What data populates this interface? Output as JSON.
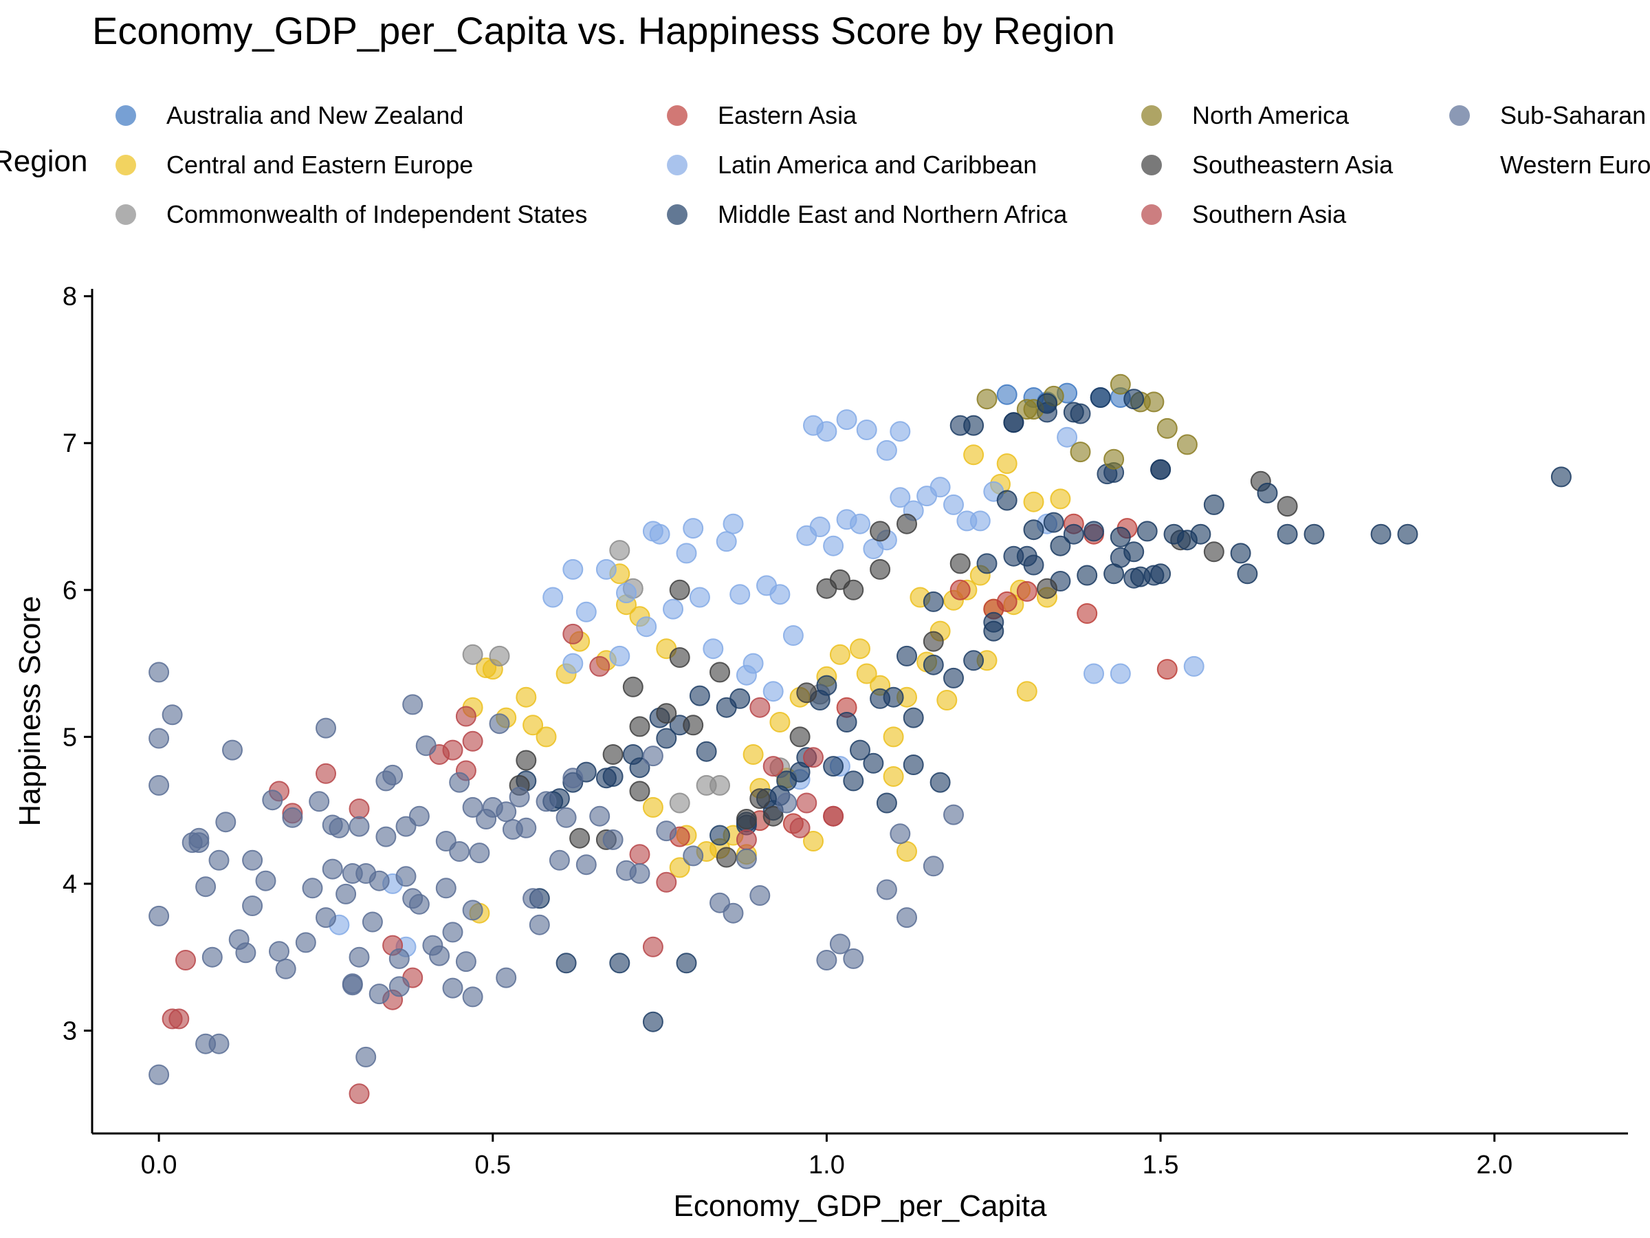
{
  "chart_data": {
    "type": "scatter",
    "title": "Economy_GDP_per_Capita vs. Happiness Score by Region",
    "xlabel": "Economy_GDP_per_Capita",
    "ylabel": "Happiness Score",
    "xlim": [
      -0.1,
      2.2
    ],
    "ylim": [
      2.3,
      8.05
    ],
    "xticks": [
      0.0,
      0.5,
      1.0,
      1.5,
      2.0
    ],
    "xtick_labels": [
      "0.0",
      "0.5",
      "1.0",
      "1.5",
      "2.0"
    ],
    "yticks": [
      3,
      4,
      5,
      6,
      7,
      8
    ],
    "ytick_labels": [
      "3",
      "4",
      "5",
      "6",
      "7",
      "8"
    ],
    "grid": false,
    "legend": {
      "title": "Region",
      "placement": "top",
      "columns": [
        [
          "Australia and New Zealand",
          "Central and Eastern Europe",
          "Commonwealth of Independent States"
        ],
        [
          "Eastern Asia",
          "Latin America and Caribbean",
          "Middle East and Northern Africa"
        ],
        [
          "North America",
          "Southeastern Asia",
          "Southern Asia"
        ],
        [
          "Sub-Saharan Africa",
          "Western Europe"
        ]
      ]
    },
    "series": [
      {
        "name": "Australia and New Zealand",
        "color": "#3d78c2",
        "x": [
          1.27,
          1.31,
          1.36,
          1.41,
          1.44,
          1.33
        ],
        "y": [
          7.33,
          7.31,
          7.34,
          7.31,
          7.31,
          7.28
        ]
      },
      {
        "name": "Central and Eastern Europe",
        "color": "#ecc01d",
        "x": [
          0.47,
          0.49,
          0.52,
          0.55,
          0.58,
          0.63,
          0.67,
          0.7,
          0.72,
          0.76,
          0.79,
          0.82,
          0.86,
          0.89,
          0.9,
          0.93,
          0.96,
          1.0,
          1.02,
          1.05,
          1.08,
          1.1,
          1.12,
          1.15,
          1.17,
          1.19,
          1.21,
          1.23,
          1.25,
          1.27,
          1.29,
          1.31,
          1.33,
          1.35,
          1.22,
          1.18,
          1.14,
          1.06,
          0.98,
          0.94,
          0.88,
          0.84,
          0.78,
          0.74,
          0.69,
          0.61,
          0.56,
          0.5,
          0.48,
          1.12,
          1.1,
          1.24,
          1.26,
          1.3,
          1.28
        ],
        "y": [
          5.2,
          5.47,
          5.13,
          5.27,
          5.0,
          5.65,
          5.52,
          5.9,
          5.82,
          5.6,
          4.33,
          4.22,
          4.33,
          4.88,
          4.65,
          5.1,
          5.27,
          5.41,
          5.56,
          5.6,
          5.35,
          5.0,
          5.27,
          5.51,
          5.72,
          5.93,
          6.0,
          6.1,
          5.87,
          6.86,
          6.0,
          6.6,
          5.95,
          6.62,
          6.92,
          5.25,
          5.95,
          5.43,
          4.29,
          4.72,
          4.2,
          4.24,
          4.11,
          4.52,
          6.11,
          5.43,
          5.08,
          5.46,
          3.8,
          4.22,
          4.73,
          5.52,
          6.72,
          5.31,
          5.9
        ]
      },
      {
        "name": "Commonwealth of Independent States",
        "color": "#8c8c8c",
        "x": [
          0.47,
          0.51,
          0.69,
          0.71,
          0.78,
          0.84,
          0.82,
          0.93,
          0.99
        ],
        "y": [
          5.56,
          5.55,
          6.27,
          6.01,
          4.55,
          4.67,
          4.67,
          4.79,
          5.29
        ]
      },
      {
        "name": "Eastern Asia",
        "color": "#bd3f3a",
        "x": [
          1.2,
          1.25,
          1.27,
          1.3,
          1.37,
          1.4,
          1.45,
          1.39,
          1.51,
          0.78,
          0.9,
          0.95,
          1.03
        ],
        "y": [
          6.0,
          5.87,
          5.92,
          5.99,
          6.45,
          6.38,
          6.42,
          5.84,
          5.46,
          4.32,
          4.43,
          4.41,
          5.2
        ]
      },
      {
        "name": "Latin America and Caribbean",
        "color": "#84aae6",
        "x": [
          0.59,
          0.62,
          0.64,
          0.67,
          0.7,
          0.73,
          0.75,
          0.77,
          0.79,
          0.81,
          0.83,
          0.85,
          0.87,
          0.89,
          0.91,
          0.93,
          0.95,
          0.97,
          0.99,
          1.01,
          1.03,
          1.05,
          1.07,
          1.09,
          1.11,
          1.13,
          1.15,
          1.17,
          1.19,
          1.21,
          1.23,
          1.25,
          1.33,
          1.36,
          1.4,
          1.44,
          1.55,
          0.98,
          1.0,
          1.03,
          1.06,
          1.09,
          1.11,
          0.74,
          0.8,
          0.86,
          0.88,
          0.92,
          0.96,
          1.02,
          0.62,
          0.69,
          0.35,
          0.37,
          0.27
        ],
        "y": [
          5.95,
          6.14,
          5.85,
          6.14,
          5.98,
          5.75,
          6.38,
          5.87,
          6.25,
          5.95,
          5.6,
          6.33,
          5.97,
          5.5,
          6.03,
          5.97,
          5.69,
          6.37,
          6.43,
          6.3,
          6.48,
          6.45,
          6.28,
          6.34,
          6.63,
          6.54,
          6.64,
          6.7,
          6.58,
          6.47,
          6.47,
          6.67,
          6.45,
          7.04,
          5.43,
          5.43,
          5.48,
          7.12,
          7.08,
          7.16,
          7.09,
          6.95,
          7.08,
          6.4,
          6.42,
          6.45,
          5.42,
          5.31,
          4.71,
          4.8,
          5.5,
          5.55,
          4.0,
          3.57,
          3.72
        ]
      },
      {
        "name": "Middle East and Northern Africa",
        "color": "#1f3e66",
        "x": [
          0.55,
          0.6,
          0.64,
          0.67,
          0.71,
          0.75,
          0.78,
          0.82,
          0.85,
          0.88,
          0.91,
          0.94,
          0.97,
          1.0,
          1.04,
          1.07,
          1.1,
          1.13,
          1.16,
          1.19,
          1.22,
          1.25,
          1.28,
          1.31,
          1.34,
          1.37,
          1.4,
          1.43,
          1.46,
          1.49,
          1.5,
          1.2,
          1.28,
          1.33,
          1.38,
          1.42,
          1.44,
          0.57,
          0.61,
          0.69,
          0.74,
          0.79,
          0.84,
          0.88,
          0.92,
          0.96,
          1.01,
          1.05,
          1.09,
          1.13,
          1.17,
          0.59,
          0.62,
          0.68,
          0.72,
          0.76,
          0.81,
          0.87,
          0.93,
          0.99,
          1.03,
          1.08,
          1.12,
          1.16,
          1.24,
          1.3,
          1.35
        ],
        "y": [
          4.7,
          4.58,
          4.76,
          4.72,
          4.88,
          5.13,
          5.08,
          4.9,
          5.2,
          4.4,
          4.58,
          4.7,
          4.86,
          5.35,
          4.7,
          4.82,
          5.27,
          5.13,
          5.49,
          5.4,
          5.52,
          5.78,
          6.23,
          6.17,
          6.46,
          6.38,
          6.4,
          6.8,
          6.08,
          6.1,
          6.82,
          7.12,
          7.14,
          7.21,
          7.2,
          6.79,
          6.22,
          3.9,
          3.46,
          3.46,
          3.06,
          3.46,
          4.33,
          4.42,
          4.5,
          4.76,
          4.8,
          4.91,
          4.55,
          4.81,
          4.69,
          4.56,
          4.69,
          4.73,
          4.79,
          4.99,
          5.28,
          5.26,
          4.6,
          5.25,
          5.1,
          5.26,
          5.55,
          5.92,
          6.18,
          6.23,
          6.06
        ]
      },
      {
        "name": "North America",
        "color": "#8b7d23",
        "x": [
          1.24,
          1.3,
          1.34,
          1.38,
          1.43,
          1.44,
          1.47,
          1.49,
          1.51,
          1.54,
          1.31
        ],
        "y": [
          7.3,
          7.23,
          7.32,
          6.94,
          6.89,
          7.4,
          7.28,
          7.28,
          7.1,
          6.99,
          7.23
        ]
      },
      {
        "name": "Southeastern Asia",
        "color": "#404040",
        "x": [
          0.55,
          0.63,
          0.68,
          0.72,
          0.76,
          0.8,
          0.84,
          0.88,
          0.92,
          0.96,
          1.0,
          1.04,
          1.08,
          1.12,
          1.16,
          1.2,
          1.33,
          1.53,
          1.58,
          1.65,
          1.69,
          0.67,
          0.71,
          0.78,
          0.85,
          0.9,
          0.97,
          1.02,
          1.08,
          0.54,
          0.72,
          0.78
        ],
        "y": [
          4.84,
          4.31,
          4.88,
          5.07,
          5.16,
          5.08,
          5.44,
          4.44,
          4.46,
          5.0,
          6.01,
          6.0,
          6.4,
          6.45,
          5.65,
          6.18,
          6.01,
          6.34,
          6.26,
          6.74,
          6.57,
          4.3,
          5.34,
          5.54,
          4.18,
          4.58,
          5.3,
          6.07,
          6.14,
          4.67,
          4.63,
          6.0
        ]
      },
      {
        "name": "Southern Asia",
        "color": "#b7474a",
        "x": [
          0.18,
          0.2,
          0.25,
          0.3,
          0.35,
          0.38,
          0.42,
          0.44,
          0.46,
          0.47,
          0.62,
          0.66,
          0.72,
          0.74,
          0.76,
          0.9,
          0.96,
          0.98,
          1.01,
          0.04,
          0.02,
          0.03,
          0.3,
          0.35,
          0.46,
          0.88,
          0.92,
          0.97,
          1.01
        ],
        "y": [
          4.63,
          4.48,
          4.75,
          4.51,
          3.21,
          3.36,
          4.88,
          4.91,
          5.14,
          4.97,
          5.7,
          5.48,
          4.2,
          3.57,
          4.01,
          5.2,
          4.38,
          4.86,
          4.46,
          3.48,
          3.08,
          3.08,
          2.57,
          3.58,
          4.77,
          4.3,
          4.8,
          4.55,
          4.46
        ]
      },
      {
        "name": "Sub-Saharan Africa",
        "color": "#5a6e95",
        "x": [
          0.0,
          0.0,
          0.0,
          0.0,
          0.02,
          0.05,
          0.06,
          0.07,
          0.08,
          0.09,
          0.1,
          0.11,
          0.12,
          0.13,
          0.14,
          0.16,
          0.17,
          0.18,
          0.19,
          0.2,
          0.22,
          0.24,
          0.25,
          0.26,
          0.27,
          0.28,
          0.29,
          0.3,
          0.31,
          0.32,
          0.33,
          0.34,
          0.35,
          0.36,
          0.37,
          0.38,
          0.39,
          0.4,
          0.42,
          0.43,
          0.44,
          0.45,
          0.46,
          0.47,
          0.48,
          0.49,
          0.5,
          0.51,
          0.52,
          0.53,
          0.54,
          0.55,
          0.56,
          0.57,
          0.58,
          0.6,
          0.61,
          0.62,
          0.64,
          0.66,
          0.68,
          0.7,
          0.72,
          0.74,
          0.76,
          0.8,
          0.84,
          0.86,
          0.88,
          0.9,
          0.94,
          1.0,
          1.02,
          1.04,
          1.09,
          1.11,
          1.12,
          1.16,
          1.19,
          0.0,
          0.07,
          0.09,
          0.06,
          0.14,
          0.23,
          0.26,
          0.29,
          0.31,
          0.33,
          0.36,
          0.37,
          0.38,
          0.41,
          0.44,
          0.47,
          0.29,
          0.3,
          0.25,
          0.34,
          0.39,
          0.43,
          0.45,
          0.47,
          0.52
        ],
        "y": [
          5.44,
          4.99,
          4.67,
          3.78,
          5.15,
          4.28,
          4.31,
          3.98,
          3.5,
          4.16,
          4.42,
          4.91,
          3.62,
          3.53,
          4.16,
          4.02,
          4.57,
          3.54,
          3.42,
          4.45,
          3.6,
          4.56,
          5.06,
          4.4,
          4.38,
          3.93,
          3.31,
          3.5,
          4.07,
          3.74,
          3.25,
          4.7,
          4.74,
          3.49,
          4.39,
          5.22,
          4.46,
          4.94,
          3.51,
          4.29,
          3.29,
          4.22,
          3.47,
          4.52,
          4.21,
          4.44,
          4.52,
          5.09,
          4.49,
          4.37,
          4.59,
          4.38,
          3.9,
          3.72,
          4.56,
          4.16,
          4.45,
          4.72,
          4.13,
          4.46,
          4.3,
          4.09,
          4.07,
          4.87,
          4.36,
          4.19,
          3.87,
          3.8,
          4.17,
          3.92,
          4.55,
          3.48,
          3.59,
          3.49,
          3.96,
          4.34,
          3.77,
          4.12,
          4.47,
          2.7,
          2.91,
          2.91,
          4.28,
          3.85,
          3.97,
          4.1,
          3.32,
          2.82,
          4.02,
          3.3,
          4.05,
          3.9,
          3.58,
          3.67,
          3.23,
          4.07,
          4.39,
          3.77,
          4.32,
          3.86,
          3.97,
          4.69,
          3.82,
          3.36
        ]
      },
      {
        "name": "Western Europe",
        "color": "#1a3a60",
        "x": [
          1.22,
          1.28,
          1.33,
          1.37,
          1.41,
          1.46,
          1.5,
          1.56,
          1.58,
          1.62,
          1.63,
          1.66,
          1.69,
          1.73,
          1.83,
          1.87,
          2.1,
          1.44,
          1.48,
          1.52,
          1.35,
          1.39,
          1.43,
          1.46,
          1.5,
          1.54,
          1.27,
          1.31,
          1.25,
          1.47
        ],
        "y": [
          7.12,
          7.14,
          7.27,
          7.21,
          7.31,
          7.3,
          6.82,
          6.38,
          6.58,
          6.25,
          6.11,
          6.66,
          6.38,
          6.38,
          6.38,
          6.38,
          6.77,
          6.36,
          6.4,
          6.38,
          6.3,
          6.1,
          6.11,
          6.26,
          6.11,
          6.34,
          6.61,
          6.41,
          5.72,
          6.09
        ]
      }
    ]
  }
}
